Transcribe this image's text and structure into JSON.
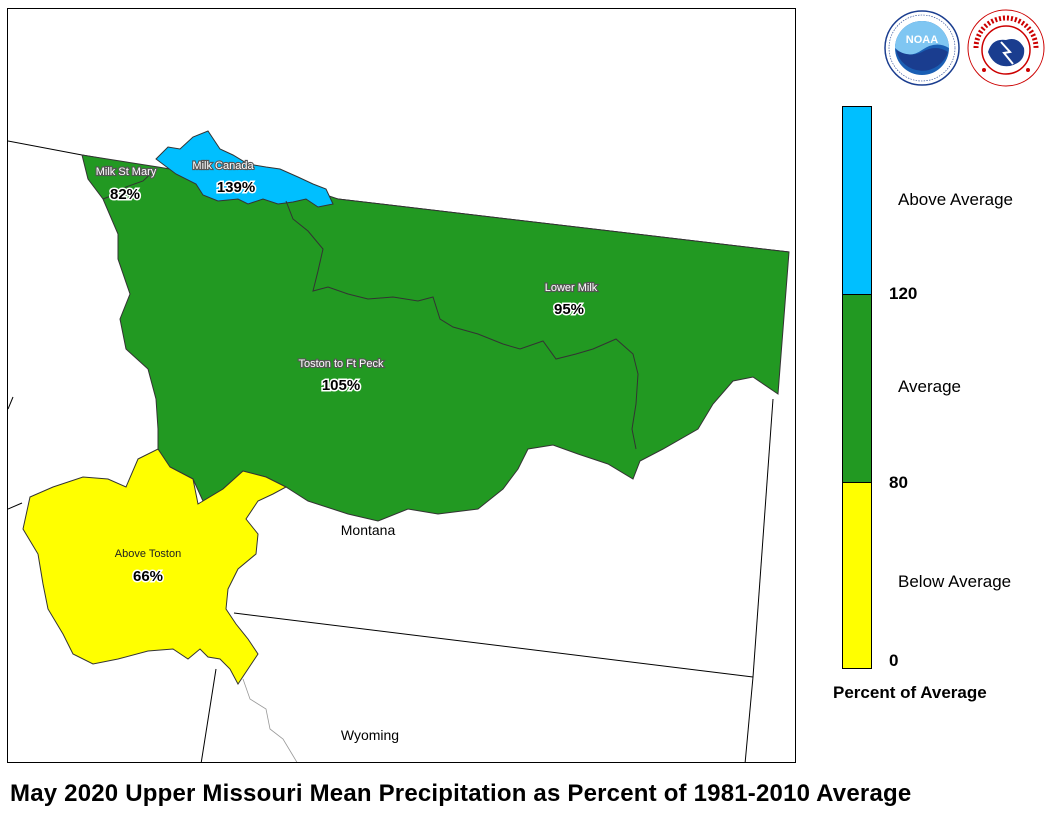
{
  "title": "May 2020 Upper Missouri Mean Precipitation as Percent of 1981-2010 Average",
  "colors": {
    "above_average": "#00BFFF",
    "average": "#229922",
    "below_average": "#FFFF00",
    "boundary": "#333333"
  },
  "basins": [
    {
      "name": "Milk Canada",
      "percent": "139%",
      "category": "above_average"
    },
    {
      "name": "Milk St Mary",
      "percent": "82%",
      "category": "average"
    },
    {
      "name": "Lower Milk",
      "percent": "95%",
      "category": "average"
    },
    {
      "name": "Toston to Ft Peck",
      "percent": "105%",
      "category": "average"
    },
    {
      "name": "Above Toston",
      "percent": "66%",
      "category": "below_average"
    }
  ],
  "states": [
    "Montana",
    "Wyoming"
  ],
  "legend": {
    "title": "Percent of Average",
    "categories": [
      "Above Average",
      "Average",
      "Below Average"
    ],
    "breaks": [
      "120",
      "80",
      "0"
    ],
    "ranges": [
      [
        120,
        200
      ],
      [
        80,
        120
      ],
      [
        0,
        80
      ]
    ]
  },
  "logos": {
    "noaa": {
      "text": "NOAA"
    },
    "nws": {
      "text": "NATIONAL WEATHER SERVICE"
    }
  }
}
